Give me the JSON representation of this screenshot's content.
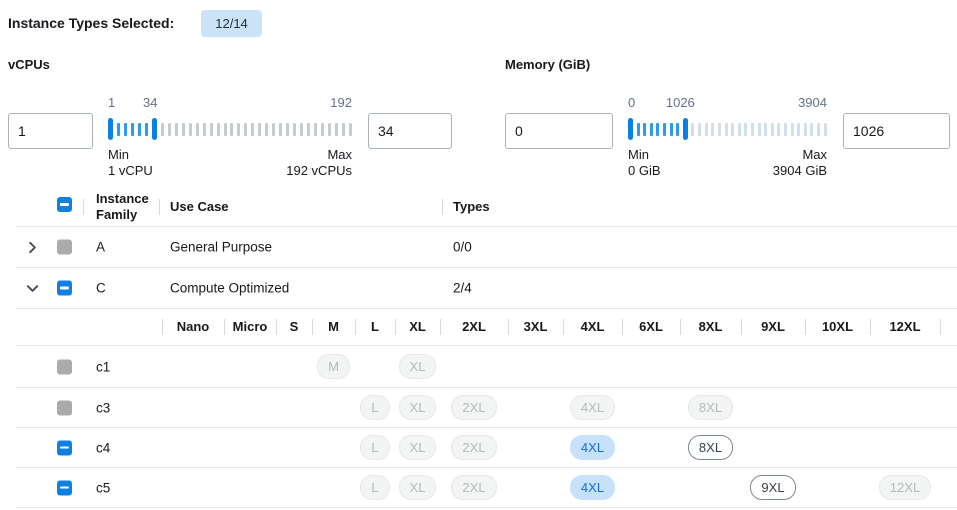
{
  "page": {
    "title_label": "Instance Types Selected:",
    "count_badge": "12/14"
  },
  "filters": {
    "vcpus": {
      "label": "vCPUs",
      "from_value": "1",
      "to_value": "34",
      "scale": {
        "start": "1",
        "mid": "34",
        "end": "192"
      },
      "min_caption_line1": "Min",
      "min_caption_line2": "1 vCPU",
      "max_caption_line1": "Max",
      "max_caption_line2": "192 vCPUs",
      "slider": {
        "in_ticks": 5,
        "out_ticks": 28,
        "out_tick_color": "#c6cbd1"
      }
    },
    "memory": {
      "label": "Memory (GiB)",
      "from_value": "0",
      "to_value": "1026",
      "scale": {
        "start": "0",
        "mid": "1026",
        "end": "3904"
      },
      "min_caption_line1": "Min",
      "min_caption_line2": "0 GiB",
      "max_caption_line1": "Max",
      "max_caption_line2": "3904 GiB",
      "slider": {
        "in_ticks": 7,
        "out_ticks": 21,
        "out_tick_color": "#cfdfee"
      }
    }
  },
  "table": {
    "header": {
      "select_all_state": "indeterminate",
      "family": "Instance Family",
      "use_case": "Use Case",
      "types": "Types"
    },
    "family_rows": [
      {
        "chevron": "right",
        "checkbox": "gray",
        "family": "A",
        "use_case": "General Purpose",
        "types": "0/0"
      },
      {
        "chevron": "down",
        "checkbox": "indeterminate",
        "family": "C",
        "use_case": "Compute Optimized",
        "types": "2/4"
      }
    ],
    "size_columns": [
      "Nano",
      "Micro",
      "S",
      "M",
      "L",
      "XL",
      "2XL",
      "3XL",
      "4XL",
      "6XL",
      "8XL",
      "9XL",
      "10XL",
      "12XL"
    ],
    "instance_rows": [
      {
        "name": "c1",
        "checkbox": "gray",
        "badges": {
          "M": "disabled",
          "XL": "disabled"
        }
      },
      {
        "name": "c3",
        "checkbox": "gray",
        "badges": {
          "L": "disabled",
          "XL": "disabled",
          "2XL": "disabled",
          "4XL": "disabled",
          "8XL": "disabled"
        }
      },
      {
        "name": "c4",
        "checkbox": "indeterminate",
        "badges": {
          "L": "disabled",
          "XL": "disabled",
          "2XL": "disabled",
          "4XL": "selected",
          "8XL": "enabled"
        }
      },
      {
        "name": "c5",
        "checkbox": "indeterminate",
        "badges": {
          "L": "disabled",
          "XL": "disabled",
          "2XL": "disabled",
          "4XL": "selected",
          "9XL": "enabled",
          "12XL": "disabled"
        }
      }
    ]
  },
  "colors": {
    "accent_blue": "#0b80e3",
    "in_range_tick": "#2b9af0",
    "count_badge_bg": "#cbe3f9",
    "selected_badge_bg": "#c6e1f9",
    "selected_badge_text": "#0f6fd6",
    "disabled_badge_text": "#b4b9be",
    "gray_checkbox": "#ababab"
  }
}
